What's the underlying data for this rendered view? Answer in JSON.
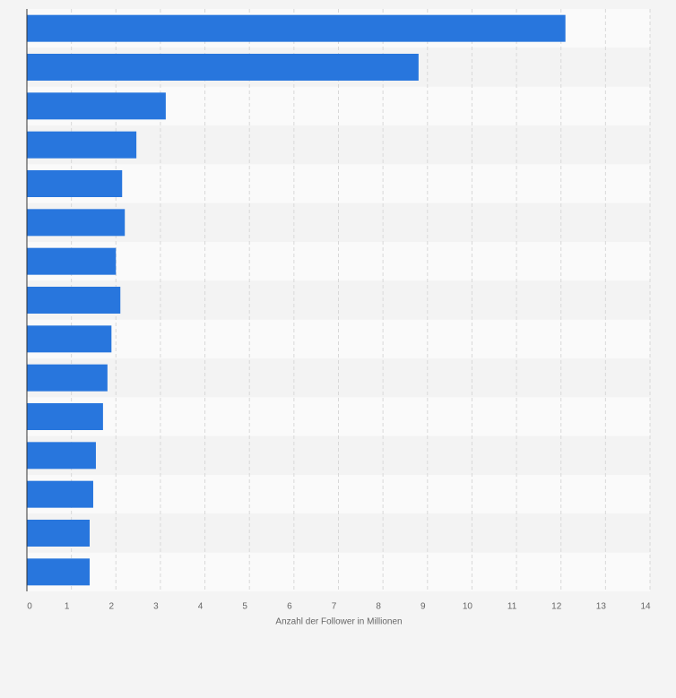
{
  "chart_data": {
    "type": "barh",
    "x_label": "Anzahl der Follower in Millionen",
    "categories": [
      null,
      null,
      null,
      null,
      null,
      null,
      null,
      null,
      null,
      null,
      null,
      null,
      null,
      null,
      null
    ],
    "values": [
      12.1,
      8.8,
      3.12,
      2.46,
      2.14,
      2.2,
      2.0,
      2.1,
      1.9,
      1.81,
      1.71,
      1.55,
      1.49,
      1.41,
      1.41
    ],
    "color": "#2876dd",
    "xlim": [
      0,
      14
    ],
    "xticks": [
      0,
      1,
      2,
      3,
      4,
      5,
      6,
      7,
      8,
      9,
      10,
      11,
      12,
      13,
      14
    ],
    "grid": true
  }
}
